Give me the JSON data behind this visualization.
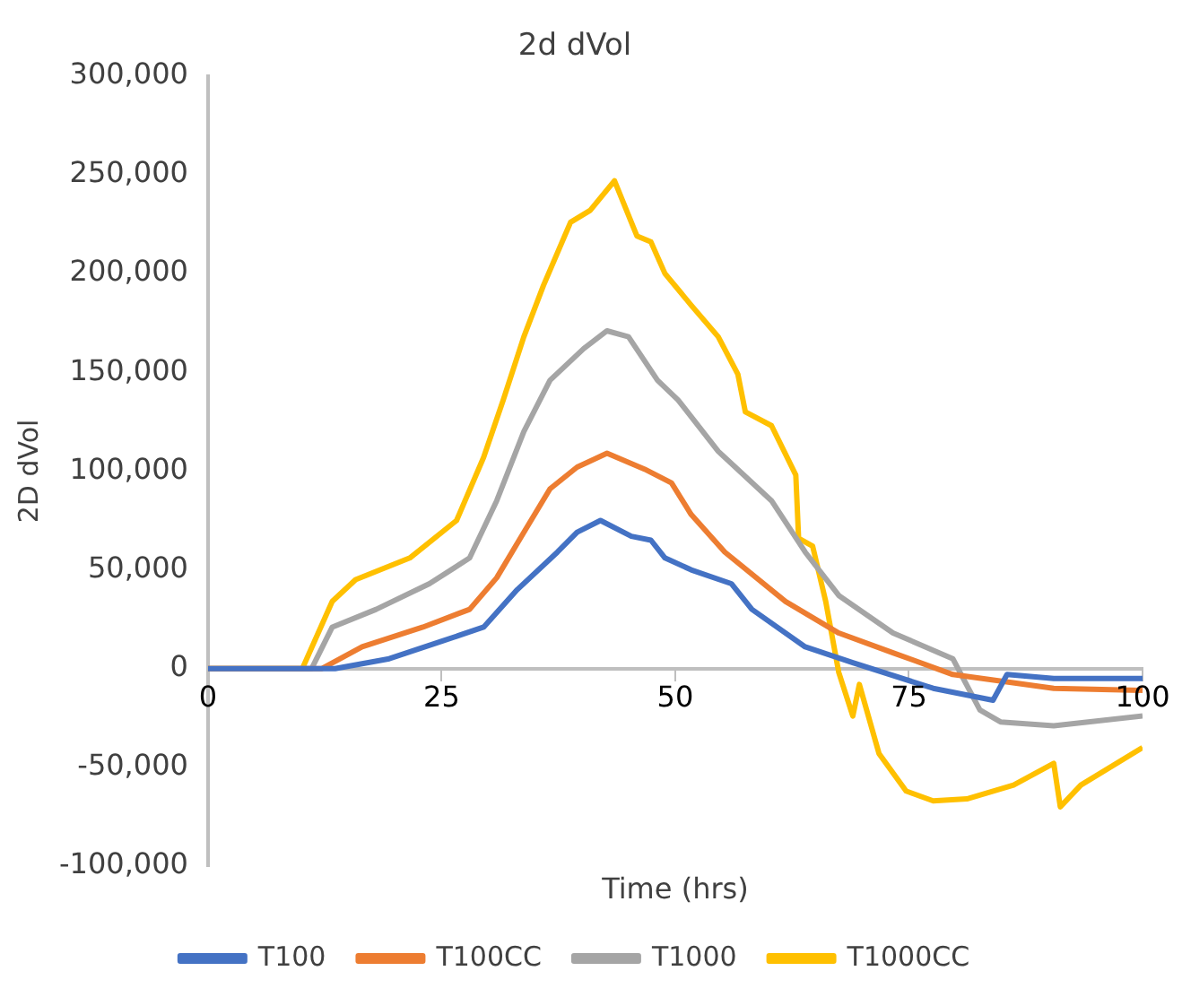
{
  "chart_data": {
    "type": "line",
    "title": "2d dVol",
    "xlabel": "Time (hrs)",
    "ylabel": "2D dVol",
    "xlim": [
      0,
      100
    ],
    "xticks": [
      0,
      25,
      50,
      75,
      100
    ],
    "ylim": [
      -100000,
      300000
    ],
    "yticks": [
      {
        "value": -100000,
        "label": "-100,000"
      },
      {
        "value": -50000,
        "label": "-50,000"
      },
      {
        "value": 0,
        "label": "0"
      },
      {
        "value": 50000,
        "label": "50,000"
      },
      {
        "value": 100000,
        "label": "100,000"
      },
      {
        "value": 150000,
        "label": "150,000"
      },
      {
        "value": 200000,
        "label": "200,000"
      },
      {
        "value": 250000,
        "label": "250,000"
      },
      {
        "value": 300000,
        "label": "300,000"
      }
    ],
    "grid": false,
    "legend": "bottom",
    "marker": "none",
    "line_style": "solid",
    "series": [
      {
        "name": "T100",
        "color": "#4472c4",
        "x": [
          0,
          13.6,
          19.4,
          25.1,
          29.5,
          33.1,
          37.4,
          39.5,
          42,
          45.3,
          47.4,
          48.9,
          51.7,
          56,
          58.2,
          63.9,
          69,
          77.6,
          84,
          85.5,
          90.5,
          100
        ],
        "values": [
          0,
          0,
          5000,
          14000,
          21000,
          40000,
          59000,
          69000,
          75000,
          67000,
          65000,
          56000,
          50000,
          43000,
          30000,
          11000,
          3000,
          -10000,
          -16000,
          -3000,
          -5000,
          -5000
        ]
      },
      {
        "name": "T100CC",
        "color": "#ed7d31",
        "x": [
          0,
          12.2,
          16.5,
          23,
          28,
          30.9,
          33.8,
          36.6,
          39.5,
          42.7,
          46.7,
          49.6,
          51.7,
          55.3,
          61.8,
          67.5,
          73.3,
          79.7,
          90.5,
          100
        ],
        "values": [
          0,
          0,
          11000,
          21000,
          30000,
          46000,
          69000,
          91000,
          102000,
          109000,
          101000,
          94000,
          78000,
          59000,
          34000,
          18000,
          8000,
          -3000,
          -10000,
          -11000
        ]
      },
      {
        "name": "T1000",
        "color": "#a5a5a5",
        "x": [
          0,
          11.1,
          13.3,
          18,
          23.7,
          28,
          30.9,
          33.8,
          36.6,
          40.2,
          42.7,
          45,
          48.1,
          50.3,
          54.6,
          60.3,
          63.9,
          67.5,
          73.3,
          79.7,
          82.6,
          84.8,
          90.5,
          100
        ],
        "values": [
          0,
          0,
          21000,
          30000,
          43000,
          56000,
          85000,
          120000,
          146000,
          162000,
          171000,
          168000,
          146000,
          136000,
          110000,
          85000,
          59000,
          37000,
          18000,
          5000,
          -21000,
          -27000,
          -29000,
          -24000
        ]
      },
      {
        "name": "T1000CC",
        "color": "#ffc000",
        "x": [
          0,
          10.1,
          13.3,
          15.8,
          21.6,
          26.6,
          29.5,
          31.6,
          33.8,
          35.9,
          38.8,
          40.9,
          43.5,
          45.9,
          47.4,
          48.9,
          51.7,
          54.6,
          56.7,
          57.5,
          60.3,
          62.9,
          63.2,
          64.7,
          66.1,
          67.5,
          69,
          69.7,
          71.8,
          74.7,
          77.6,
          81.2,
          86.2,
          90.5,
          91.2,
          93.4,
          100
        ],
        "values": [
          0,
          0,
          34000,
          45000,
          56000,
          75000,
          107000,
          136000,
          168000,
          194000,
          226000,
          232000,
          247000,
          219000,
          216000,
          200000,
          184000,
          168000,
          149000,
          130000,
          123000,
          98000,
          66000,
          62000,
          34000,
          -2000,
          -24000,
          -8000,
          -43000,
          -62000,
          -67000,
          -66000,
          -59000,
          -48000,
          -70000,
          -59000,
          -40000
        ]
      }
    ]
  }
}
